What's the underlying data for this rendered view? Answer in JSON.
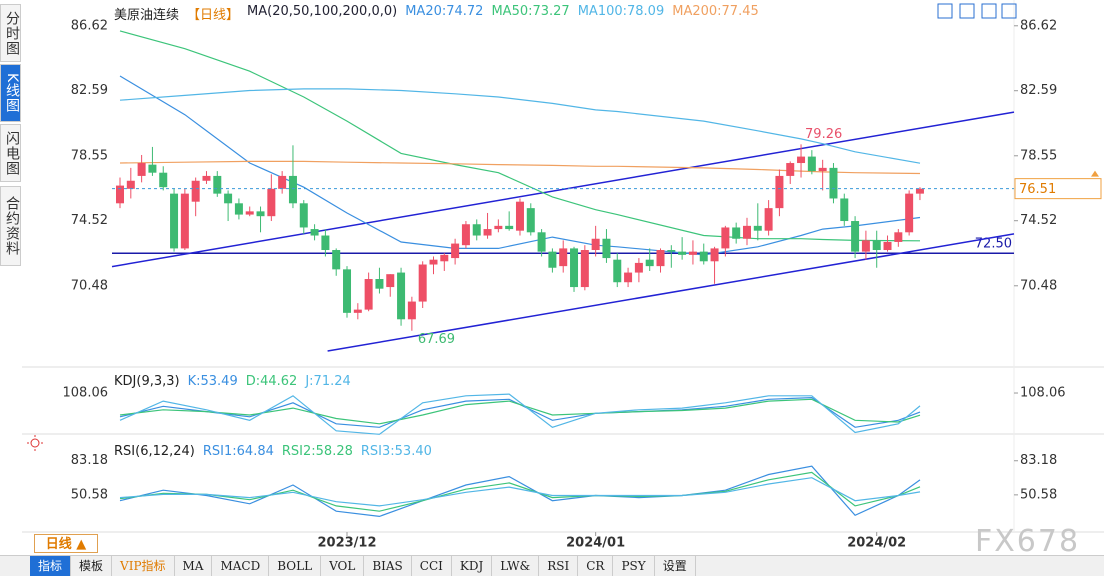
{
  "sidebar": [
    "分时图",
    "K线图",
    "闪电图",
    "合约资料"
  ],
  "chart_data": [
    {
      "type": "candlestick",
      "title": "美原油连续",
      "period": "【日线】",
      "indicator": "MA(20,50,100,200,0,0)",
      "up_color": "#ee4f66",
      "down_color": "#3dba72",
      "candles": {
        "open": [
          75.6,
          76.5,
          77.3,
          78.0,
          77.5,
          76.2,
          72.8,
          75.7,
          77.0,
          77.3,
          76.2,
          75.6,
          74.9,
          75.1,
          74.8,
          76.5,
          77.3,
          75.6,
          74.0,
          73.6,
          72.7,
          71.5,
          68.8,
          69.0,
          70.9,
          70.4,
          71.3,
          68.4,
          69.5,
          71.8,
          72.0,
          72.2,
          73.0,
          74.3,
          73.6,
          74.0,
          74.2,
          73.9,
          75.3,
          73.8,
          72.6,
          71.7,
          72.8,
          70.4,
          72.7,
          73.4,
          72.1,
          70.7,
          71.3,
          72.1,
          71.7,
          72.7,
          72.6,
          72.4,
          72.6,
          72.0,
          72.8,
          74.1,
          73.4,
          74.2,
          73.9,
          75.3,
          77.3,
          78.1,
          78.5,
          77.6,
          77.8,
          75.9,
          74.5,
          72.6,
          73.3,
          72.7,
          73.2,
          73.8,
          76.2
        ],
        "high": [
          77.2,
          77.8,
          78.6,
          79.1,
          77.9,
          76.5,
          76.5,
          77.2,
          77.6,
          77.6,
          76.4,
          75.9,
          75.4,
          75.4,
          77.4,
          77.6,
          79.2,
          75.8,
          74.3,
          74.0,
          72.8,
          71.7,
          69.4,
          71.3,
          71.6,
          71.2,
          71.6,
          69.8,
          72.0,
          72.3,
          72.5,
          73.4,
          74.5,
          74.6,
          75.0,
          74.6,
          75.1,
          75.9,
          75.6,
          74.0,
          72.8,
          73.3,
          72.9,
          73.0,
          74.2,
          74.0,
          72.5,
          71.6,
          72.2,
          72.8,
          72.8,
          73.0,
          73.5,
          73.3,
          73.1,
          72.9,
          74.2,
          74.4,
          74.7,
          75.6,
          75.8,
          77.7,
          78.2,
          79.26,
          78.9,
          78.3,
          78.1,
          76.2,
          74.8,
          73.9,
          73.9,
          73.6,
          74.0,
          76.4,
          76.6
        ],
        "low": [
          75.3,
          75.9,
          76.9,
          77.3,
          76.4,
          72.6,
          72.7,
          74.8,
          76.8,
          76.0,
          74.5,
          74.6,
          74.8,
          73.8,
          74.5,
          76.2,
          75.3,
          73.7,
          73.3,
          72.3,
          71.1,
          68.5,
          68.4,
          68.9,
          70.0,
          69.8,
          68.0,
          67.69,
          69.1,
          71.2,
          71.4,
          71.8,
          72.8,
          73.3,
          73.4,
          73.8,
          73.9,
          73.6,
          73.6,
          72.3,
          71.3,
          71.3,
          70.1,
          70.2,
          72.3,
          71.9,
          70.4,
          70.4,
          70.7,
          71.4,
          71.3,
          71.6,
          72.1,
          71.8,
          71.8,
          70.6,
          72.3,
          73.1,
          73.0,
          73.3,
          73.6,
          74.8,
          76.8,
          77.2,
          77.4,
          76.4,
          75.6,
          74.2,
          72.2,
          72.1,
          71.6,
          72.6,
          72.9,
          73.6,
          75.8
        ],
        "close": [
          76.7,
          77.0,
          78.1,
          77.5,
          76.6,
          72.8,
          76.2,
          77.0,
          77.3,
          76.2,
          75.6,
          74.9,
          75.1,
          74.8,
          76.5,
          77.3,
          75.6,
          74.1,
          73.6,
          72.7,
          71.5,
          68.8,
          69.0,
          70.9,
          70.3,
          71.2,
          68.4,
          69.5,
          71.8,
          72.1,
          72.4,
          73.1,
          74.3,
          73.6,
          74.0,
          74.2,
          74.0,
          75.7,
          73.8,
          72.6,
          71.6,
          72.8,
          70.4,
          72.7,
          73.4,
          72.2,
          70.7,
          71.3,
          71.9,
          71.7,
          72.7,
          72.6,
          72.4,
          72.6,
          72.0,
          72.8,
          74.1,
          73.4,
          74.2,
          73.9,
          75.3,
          77.3,
          78.1,
          78.5,
          77.6,
          77.8,
          75.9,
          74.5,
          72.6,
          73.3,
          72.7,
          73.2,
          73.8,
          76.2,
          76.51
        ]
      },
      "lines": {
        "x": [
          0,
          6,
          12,
          17,
          21,
          26,
          31,
          35,
          40,
          44,
          46,
          54,
          59,
          63,
          65,
          68,
          74
        ],
        "series": [
          {
            "name": "MA20:74.72",
            "color": "#3a8fe0",
            "values": [
              83.5,
              81.1,
              78.1,
              76.6,
              75.0,
              73.2,
              72.8,
              72.8,
              73.5,
              73.0,
              72.9,
              72.4,
              72.9,
              73.6,
              74.0,
              74.2,
              74.72
            ]
          },
          {
            "name": "MA50:73.27",
            "color": "#3cc47a",
            "values": [
              86.3,
              85.2,
              83.8,
              82.2,
              80.7,
              78.7,
              78.0,
              77.5,
              76.0,
              75.2,
              74.9,
              73.6,
              73.4,
              73.4,
              73.35,
              73.3,
              73.27
            ]
          },
          {
            "name": "MA100:78.09",
            "color": "#52b6e6",
            "values": [
              82.0,
              82.3,
              82.6,
              82.7,
              82.7,
              82.6,
              82.4,
              82.2,
              81.8,
              81.4,
              81.3,
              80.7,
              80.1,
              79.6,
              79.3,
              78.8,
              78.09
            ]
          },
          {
            "name": "MA200:77.45",
            "color": "#f0a060",
            "values": [
              78.1,
              78.15,
              78.2,
              78.2,
              78.15,
              78.1,
              78.05,
              78.0,
              77.95,
              77.9,
              77.9,
              77.8,
              77.7,
              77.6,
              77.55,
              77.5,
              77.45
            ]
          }
        ]
      },
      "trendlines": [
        {
          "color": "#2222d4",
          "x": [
            -0.74,
            82.7
          ],
          "values": [
            71.67,
            81.26
          ]
        },
        {
          "color": "#2222d4",
          "x": [
            19.2,
            82.7
          ],
          "values": [
            66.43,
            73.7
          ]
        }
      ],
      "hline": {
        "value": 72.5,
        "label": "72.50",
        "color": "#1a1aa8"
      },
      "current_color": "#3a9ad9",
      "xlim": [
        -0.74,
        82.7
      ],
      "xticks": [
        {
          "value": 21,
          "label": "2023/12"
        },
        {
          "value": 44,
          "label": "2024/01"
        },
        {
          "value": 70,
          "label": "2024/02"
        }
      ],
      "ylim": [
        65.5,
        87.6
      ],
      "yticks": [
        86.62,
        82.59,
        78.55,
        74.52,
        70.48
      ]
    },
    {
      "type": "line",
      "title": "KDJ(9,3,3)",
      "x": [
        0,
        4,
        8,
        12,
        16,
        20,
        24,
        28,
        32,
        36,
        40,
        44,
        48,
        52,
        56,
        60,
        64,
        68,
        72,
        74
      ],
      "series": [
        {
          "name": "K:53.49",
          "color": "#3a8fe0",
          "values": [
            40,
            70,
            55,
            40,
            80,
            20,
            10,
            60,
            85,
            90,
            30,
            50,
            55,
            60,
            70,
            90,
            95,
            10,
            30,
            53.49
          ]
        },
        {
          "name": "D:44.62",
          "color": "#3cc47a",
          "values": [
            45,
            60,
            55,
            45,
            65,
            35,
            20,
            45,
            75,
            85,
            45,
            50,
            55,
            58,
            65,
            85,
            90,
            30,
            25,
            44.62
          ]
        },
        {
          "name": "J:71.24",
          "color": "#52b6e6",
          "values": [
            30,
            85,
            60,
            30,
            100,
            0,
            -10,
            80,
            100,
            105,
            10,
            50,
            60,
            65,
            80,
            100,
            100,
            -5,
            20,
            71.24
          ]
        }
      ],
      "ylim": [
        -15,
        174
      ],
      "yticks": [
        108.06
      ]
    },
    {
      "type": "line",
      "title": "RSI(6,12,24)",
      "x": [
        0,
        4,
        8,
        12,
        16,
        20,
        24,
        28,
        32,
        36,
        40,
        44,
        48,
        52,
        56,
        60,
        64,
        68,
        72,
        74
      ],
      "series": [
        {
          "name": "RSI1:64.84",
          "color": "#3a8fe0",
          "values": [
            45,
            55,
            50,
            42,
            60,
            35,
            30,
            45,
            60,
            68,
            45,
            50,
            48,
            50,
            55,
            70,
            78,
            31,
            50,
            64.84
          ]
        },
        {
          "name": "RSI2:58.28",
          "color": "#3cc47a",
          "values": [
            47,
            52,
            51,
            46,
            55,
            40,
            35,
            45,
            56,
            62,
            48,
            50,
            49,
            50,
            54,
            65,
            72,
            40,
            50,
            58.28
          ]
        },
        {
          "name": "RSI3:53.40",
          "color": "#52b6e6",
          "values": [
            48,
            51,
            51,
            48,
            53,
            44,
            40,
            46,
            53,
            58,
            50,
            50,
            50,
            50,
            53,
            61,
            67,
            45,
            50,
            53.4
          ]
        }
      ],
      "ylim": [
        17,
        103
      ],
      "yticks": [
        83.18,
        50.58
      ]
    }
  ],
  "bottom_button": "日线 ▲",
  "watermark": "FX678",
  "toolbar": [
    "指标",
    "模板",
    "VIP指标",
    "MA",
    "MACD",
    "BOLL",
    "VOL",
    "BIAS",
    "CCI",
    "KDJ",
    "LW&",
    "RSI",
    "CR",
    "PSY",
    "设置"
  ]
}
